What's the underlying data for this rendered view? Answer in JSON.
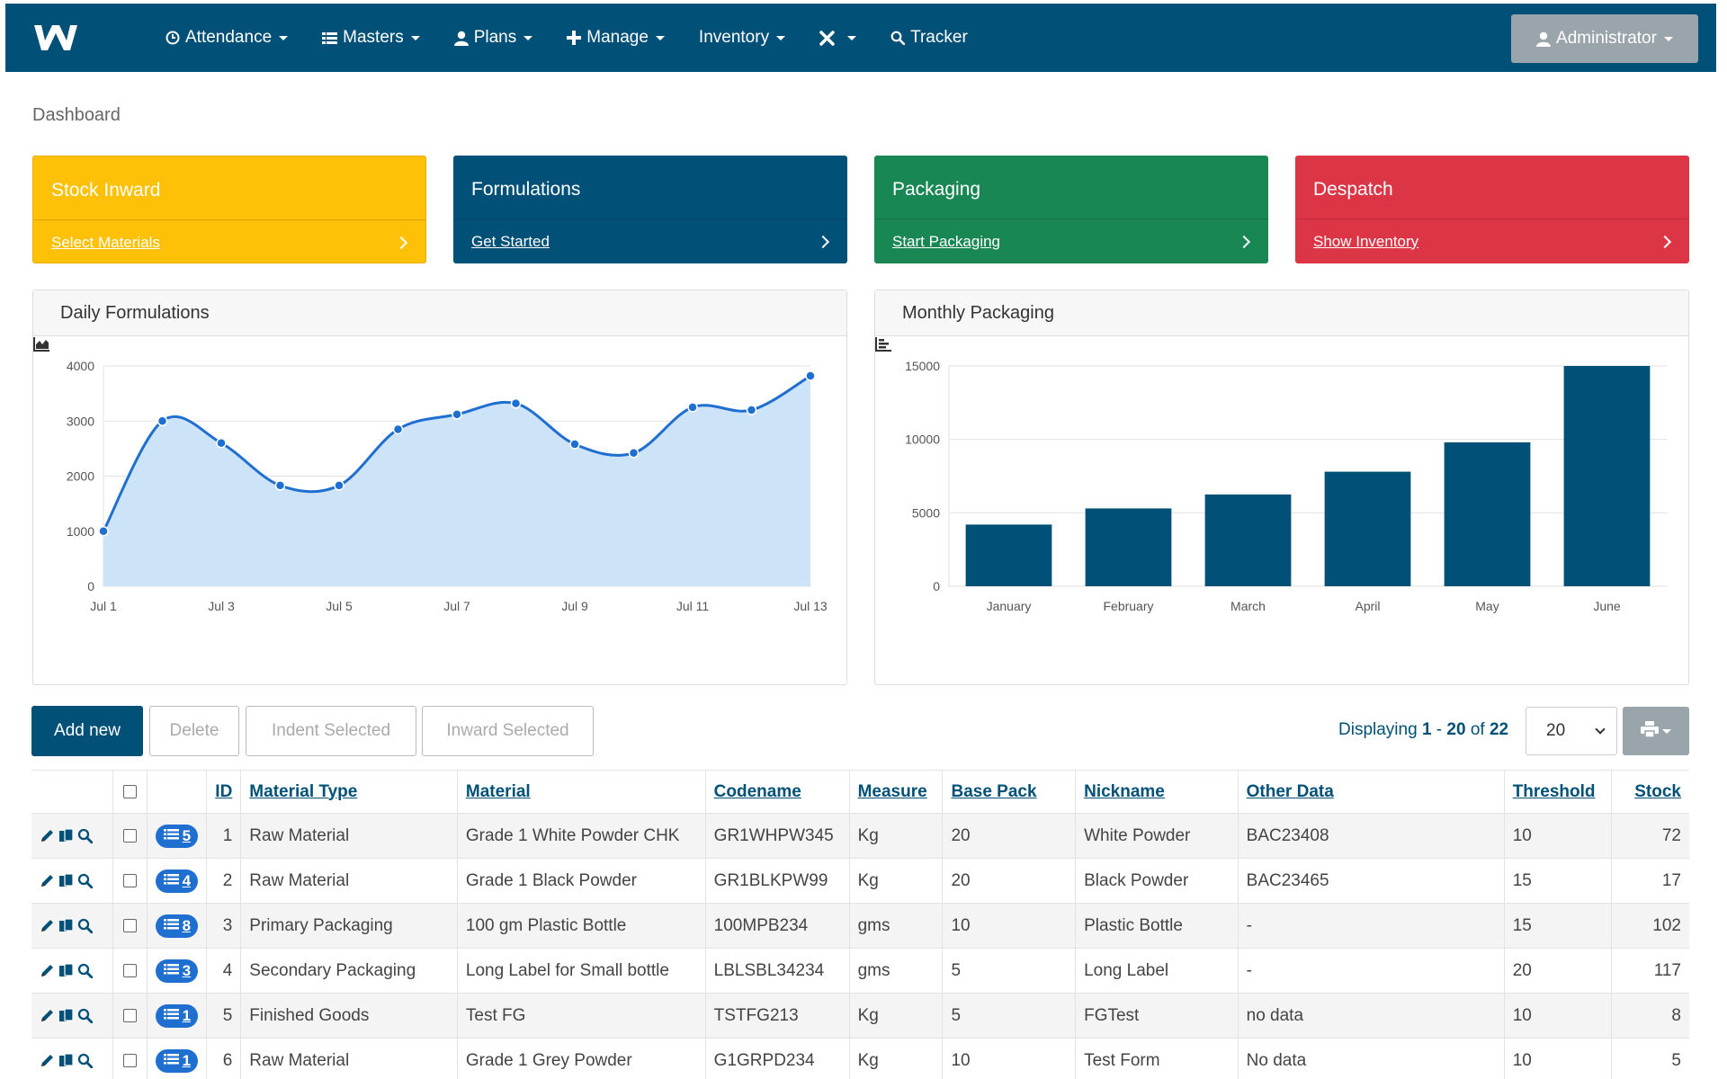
{
  "nav": {
    "logo": "W",
    "items": [
      {
        "label": "Attendance",
        "icon": "clock-icon"
      },
      {
        "label": "Masters",
        "icon": "list-icon"
      },
      {
        "label": "Plans",
        "icon": "user-icon"
      },
      {
        "label": "Manage",
        "icon": "plus-icon"
      },
      {
        "label": "Inventory",
        "icon": ""
      },
      {
        "label": "",
        "icon": "tools-icon"
      },
      {
        "label": "Tracker",
        "icon": "search-icon"
      }
    ],
    "admin_label": "Administrator"
  },
  "breadcrumb": "Dashboard",
  "cards": [
    {
      "title": "Stock Inward",
      "link": "Select Materials",
      "color": "#ffc107"
    },
    {
      "title": "Formulations",
      "link": "Get Started",
      "color": "#005077"
    },
    {
      "title": "Packaging",
      "link": "Start Packaging",
      "color": "#198754"
    },
    {
      "title": "Despatch",
      "link": "Show Inventory",
      "color": "#dc3545"
    }
  ],
  "panels": {
    "left_title": "Daily Formulations",
    "right_title": "Monthly Packaging"
  },
  "chart_data": [
    {
      "type": "area",
      "title": "Daily Formulations",
      "x": [
        "Jul 1",
        "Jul 2",
        "Jul 3",
        "Jul 4",
        "Jul 5",
        "Jul 6",
        "Jul 7",
        "Jul 8",
        "Jul 9",
        "Jul 10",
        "Jul 11",
        "Jul 12",
        "Jul 13"
      ],
      "xticks": [
        "Jul 1",
        "Jul 3",
        "Jul 5",
        "Jul 7",
        "Jul 9",
        "Jul 11",
        "Jul 13"
      ],
      "values": [
        1000,
        3000,
        2600,
        1830,
        1830,
        2850,
        3120,
        3320,
        2580,
        2420,
        3250,
        3200,
        3820
      ],
      "ylim": [
        0,
        4000
      ],
      "yticks": [
        0,
        1000,
        2000,
        3000,
        4000
      ],
      "color": "#1f6fd1",
      "fill": "#cde3f7",
      "grid": true
    },
    {
      "type": "bar",
      "title": "Monthly Packaging",
      "categories": [
        "January",
        "February",
        "March",
        "April",
        "May",
        "June"
      ],
      "values": [
        4200,
        5300,
        6250,
        7800,
        9800,
        15000
      ],
      "ylim": [
        0,
        15000
      ],
      "yticks": [
        0,
        5000,
        10000,
        15000
      ],
      "color": "#005077",
      "grid": true
    }
  ],
  "toolbar": {
    "add_new": "Add new",
    "delete": "Delete",
    "indent_selected": "Indent Selected",
    "inward_selected": "Inward Selected",
    "displaying_prefix": "Displaying",
    "range_start": "1",
    "range_sep": "-",
    "range_end": "20",
    "of": "of",
    "total": "22",
    "page_size": "20"
  },
  "table": {
    "headers": {
      "id": "ID",
      "material_type": "Material Type",
      "material": "Material",
      "codename": "Codename",
      "measure": "Measure",
      "base_pack": "Base Pack",
      "nickname": "Nickname",
      "other_data": "Other Data",
      "threshold": "Threshold",
      "stock": "Stock"
    },
    "rows": [
      {
        "badge": "5",
        "id": "1",
        "material_type": "Raw Material",
        "material": "Grade 1 White Powder CHK",
        "codename": "GR1WHPW345",
        "measure": "Kg",
        "base_pack": "20",
        "nickname": "White Powder",
        "other_data": "BAC23408",
        "threshold": "10",
        "stock": "72"
      },
      {
        "badge": "4",
        "id": "2",
        "material_type": "Raw Material",
        "material": "Grade 1 Black Powder",
        "codename": "GR1BLKPW99",
        "measure": "Kg",
        "base_pack": "20",
        "nickname": "Black Powder",
        "other_data": "BAC23465",
        "threshold": "15",
        "stock": "17"
      },
      {
        "badge": "8",
        "id": "3",
        "material_type": "Primary Packaging",
        "material": "100 gm Plastic Bottle",
        "codename": "100MPB234",
        "measure": "gms",
        "base_pack": "10",
        "nickname": "Plastic Bottle",
        "other_data": "-",
        "threshold": "15",
        "stock": "102"
      },
      {
        "badge": "3",
        "id": "4",
        "material_type": "Secondary Packaging",
        "material": "Long Label for Small bottle",
        "codename": "LBLSBL34234",
        "measure": "gms",
        "base_pack": "5",
        "nickname": "Long Label",
        "other_data": "-",
        "threshold": "20",
        "stock": "117"
      },
      {
        "badge": "1",
        "id": "5",
        "material_type": "Finished Goods",
        "material": "Test FG",
        "codename": "TSTFG213",
        "measure": "Kg",
        "base_pack": "5",
        "nickname": "FGTest",
        "other_data": "no data",
        "threshold": "10",
        "stock": "8"
      },
      {
        "badge": "1",
        "id": "6",
        "material_type": "Raw Material",
        "material": "Grade 1 Grey Powder",
        "codename": "G1GRPD234",
        "measure": "Kg",
        "base_pack": "10",
        "nickname": "Test Form",
        "other_data": "No data",
        "threshold": "10",
        "stock": "5"
      }
    ]
  }
}
